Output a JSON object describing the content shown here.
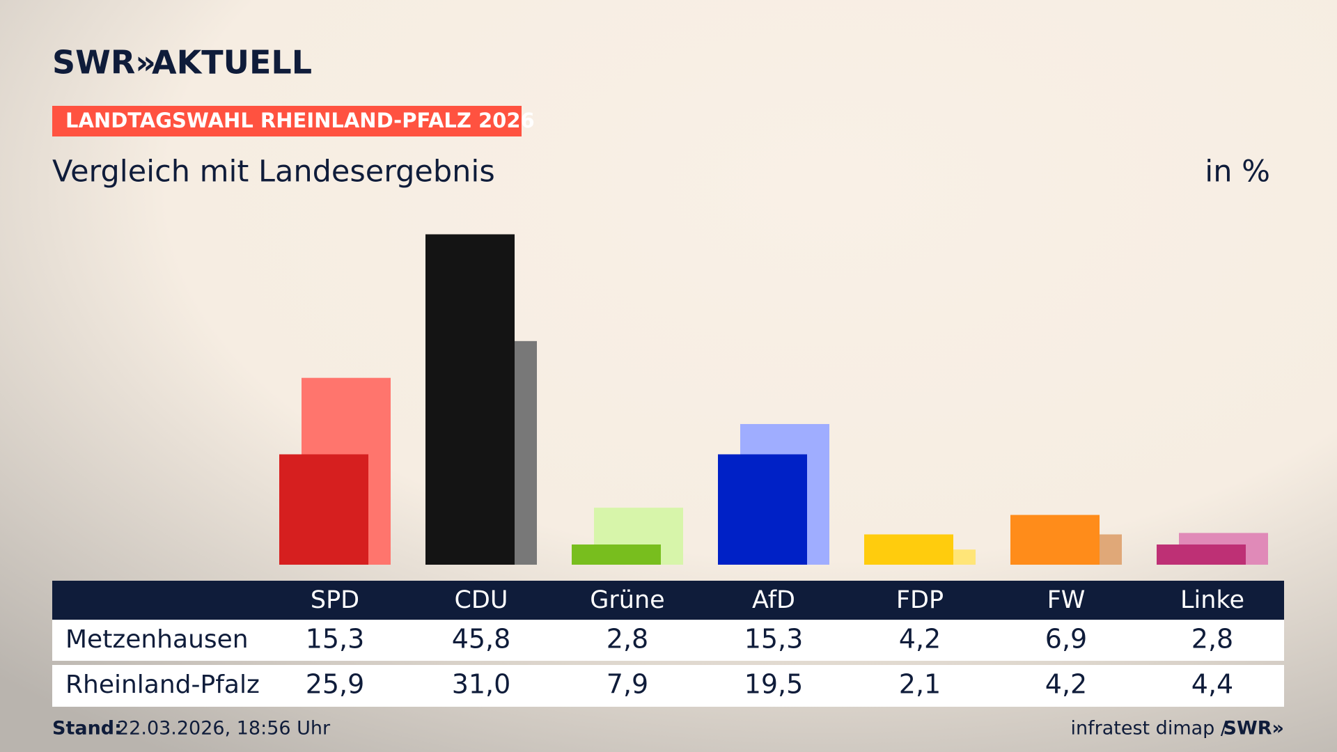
{
  "brand": {
    "logo": "SWR»",
    "name": "AKTUELL"
  },
  "badge": "LANDTAGSWAHL RHEINLAND-PFALZ 2026",
  "footer": {
    "stand_label": "Stand:",
    "stand": "22.03.2026, 18:56 Uhr",
    "source": "infratest dimap /",
    "source_logo": "SWR»"
  },
  "chart_data": {
    "type": "bar",
    "title": "Vergleich mit Landesergebnis",
    "unit": "in %",
    "categories": [
      "SPD",
      "CDU",
      "Grüne",
      "AfD",
      "FDP",
      "FW",
      "Linke"
    ],
    "series": [
      {
        "name": "Metzenhausen",
        "colors": [
          "#d61f1f",
          "#141414",
          "#78be1e",
          "#0021c6",
          "#ffcc0d",
          "#ff8c1a",
          "#be3075"
        ],
        "values": [
          15.3,
          45.8,
          2.8,
          15.3,
          4.2,
          6.9,
          2.8
        ],
        "value_labels": [
          "15,3",
          "45,8",
          "2,8",
          "15,3",
          "4,2",
          "6,9",
          "2,8"
        ]
      },
      {
        "name": "Rheinland-Pfalz",
        "colors": [
          "#ff756d",
          "#787878",
          "#d7f5aa",
          "#9fadff",
          "#ffe578",
          "#e0a878",
          "#e08ab8"
        ],
        "values": [
          25.9,
          31.0,
          7.9,
          19.5,
          2.1,
          4.2,
          4.4
        ],
        "value_labels": [
          "25,9",
          "31,0",
          "7,9",
          "19,5",
          "2,1",
          "4,2",
          "4,4"
        ]
      }
    ],
    "ylim": [
      0,
      50
    ]
  }
}
